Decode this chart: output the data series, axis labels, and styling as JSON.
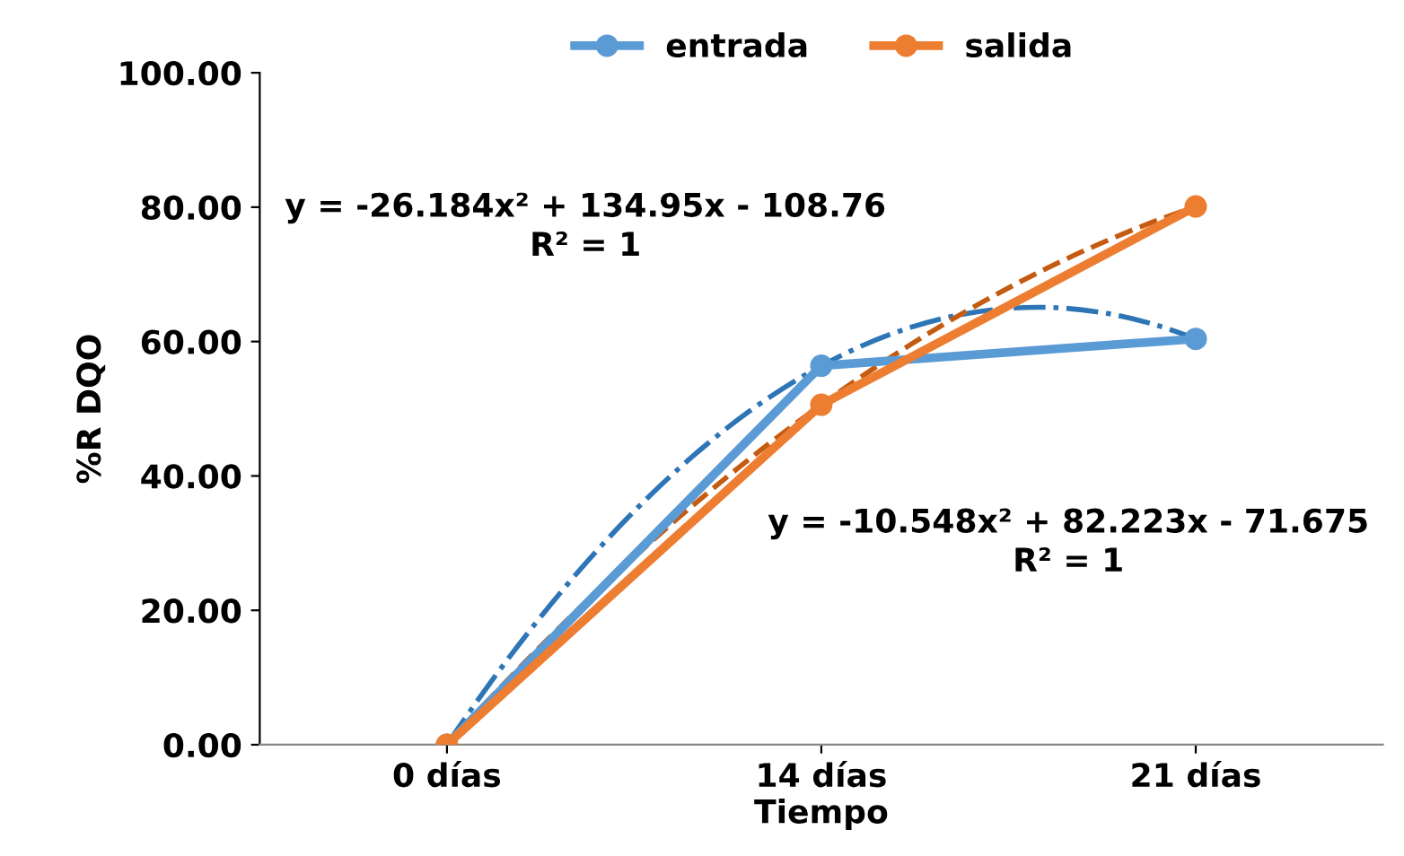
{
  "chart_data": {
    "type": "line",
    "xlabel": "Tiempo",
    "ylabel": "%R DQO",
    "categories": [
      "0 días",
      "14 días",
      "21 días"
    ],
    "series": [
      {
        "name": "entrada",
        "color": "#5b9bd5",
        "values": [
          0.0,
          56.4,
          60.4
        ],
        "marker": "circle",
        "line_style": "solid"
      },
      {
        "name": "salida",
        "color": "#ed7d31",
        "values": [
          0.0,
          50.6,
          80.1
        ],
        "marker": "circle",
        "line_style": "solid"
      },
      {
        "color": "#2e75b6",
        "values": [
          0.0,
          56.4,
          60.4
        ],
        "line_style": "dashdot"
      },
      {
        "color": "#c55a11",
        "values": [
          0.0,
          50.6,
          80.1
        ],
        "line_style": "dashed"
      }
    ],
    "ylim": [
      0,
      100
    ],
    "yticks": [
      {
        "value": 0,
        "label": "0.00"
      },
      {
        "value": 20,
        "label": "20.00"
      },
      {
        "value": 40,
        "label": "40.00"
      },
      {
        "value": 60,
        "label": "60.00"
      },
      {
        "value": 80,
        "label": "80.00"
      },
      {
        "value": 100,
        "label": "100.00"
      }
    ],
    "annotations": [
      "y = -26.184x² + 134.95x - 108.76\nR² = 1",
      "y = -10.548x² + 82.223x - 71.675\nR² = 1"
    ],
    "legend": "top right",
    "grid": false
  }
}
